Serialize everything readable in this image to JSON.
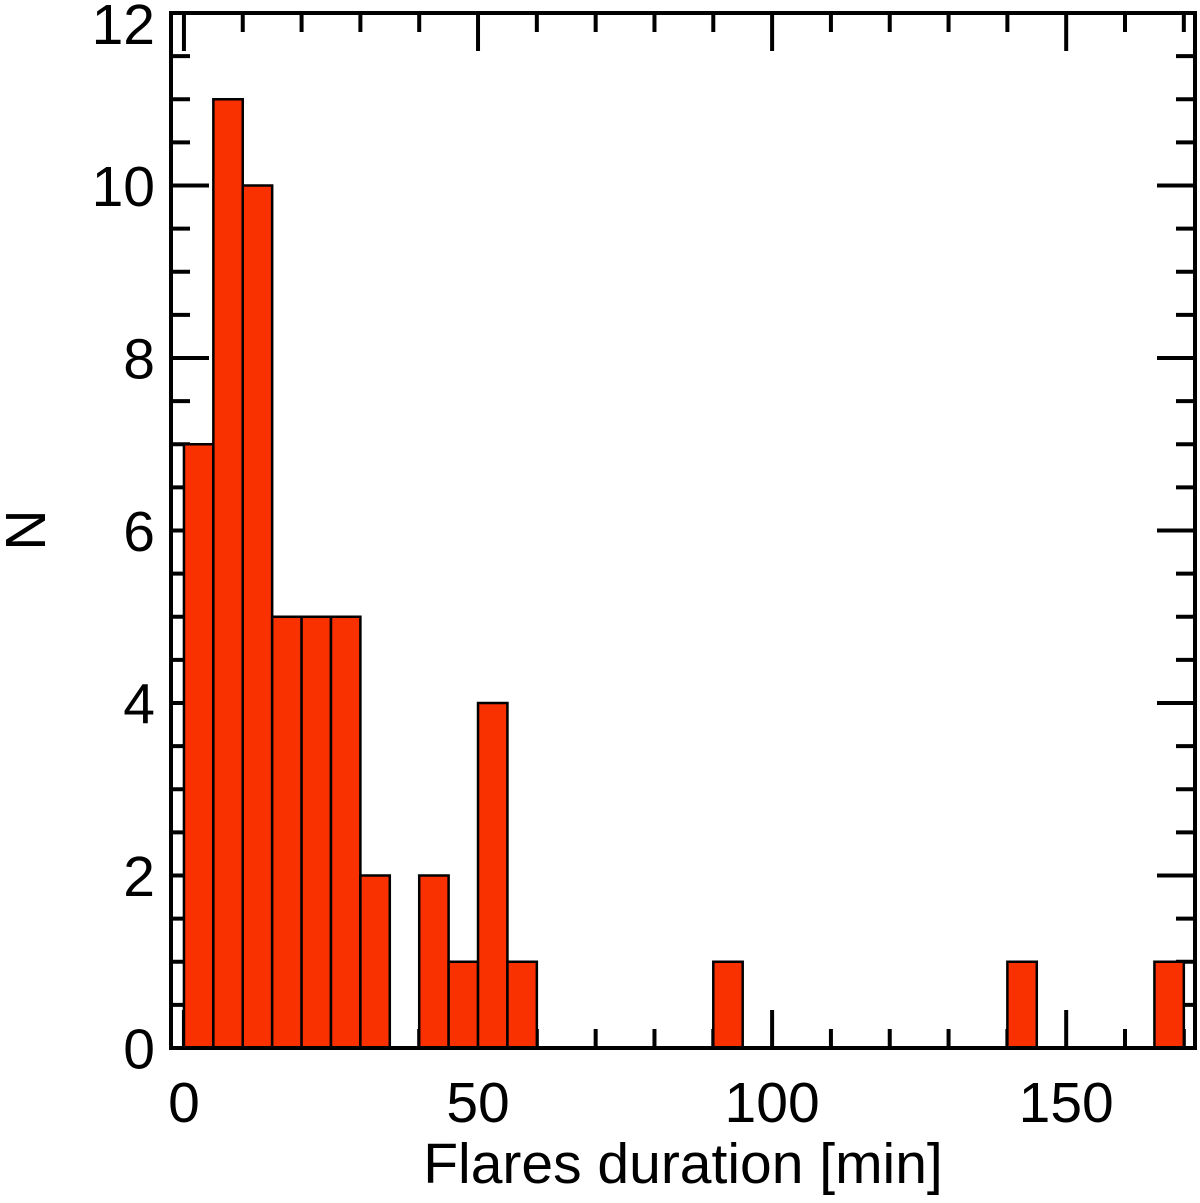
{
  "axes": {
    "x_title": "Flares duration [min]",
    "y_title": "N"
  },
  "chart_data": {
    "type": "bar",
    "subtype": "histogram",
    "title": "",
    "xlabel": "Flares duration [min]",
    "ylabel": "N",
    "bin_width": 5,
    "bin_starts": [
      0,
      5,
      10,
      15,
      20,
      25,
      30,
      35,
      40,
      45,
      50,
      55,
      60,
      65,
      70,
      75,
      80,
      85,
      90,
      95,
      100,
      105,
      110,
      115,
      120,
      125,
      130,
      135,
      140,
      145,
      150,
      155,
      160,
      165
    ],
    "counts": [
      7,
      11,
      10,
      5,
      5,
      5,
      2,
      0,
      2,
      1,
      4,
      1,
      0,
      0,
      0,
      0,
      0,
      0,
      1,
      0,
      0,
      0,
      0,
      0,
      0,
      0,
      0,
      0,
      1,
      0,
      0,
      0,
      0,
      1
    ],
    "xlim": [
      -2.2,
      171.9
    ],
    "ylim": [
      0,
      12
    ],
    "x_major_ticks": [
      0,
      50,
      100,
      150
    ],
    "x_major_tick_labels": [
      "0",
      "50",
      "100",
      "150"
    ],
    "x_minor_ticks": [
      10,
      20,
      30,
      40,
      60,
      70,
      80,
      90,
      110,
      120,
      130,
      140,
      160,
      170
    ],
    "y_major_ticks": [
      0,
      2,
      4,
      6,
      8,
      10,
      12
    ],
    "y_major_tick_labels": [
      "0",
      "2",
      "4",
      "6",
      "8",
      "10",
      "12"
    ],
    "y_minor_ticks": [
      0.5,
      1,
      1.5,
      2.5,
      3,
      3.5,
      4.5,
      5,
      5.5,
      6.5,
      7,
      7.5,
      8.5,
      9,
      9.5,
      10.5,
      11,
      11.5
    ],
    "grid": false,
    "legend": "none",
    "bar_color": "#f93000",
    "bar_outline_color": "#000000",
    "axis_color": "#000000",
    "background_color": "#ffffff"
  }
}
